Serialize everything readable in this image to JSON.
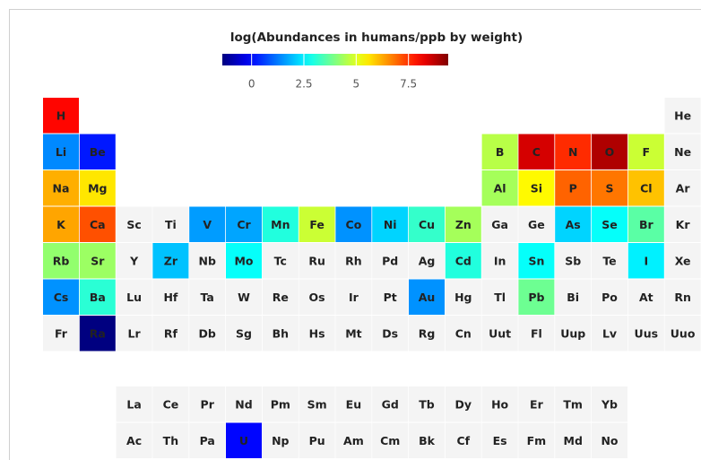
{
  "chart_data": {
    "type": "heatmap",
    "title": "log(Abundances in humans/ppb by weight)",
    "clim": [
      -1.4,
      9.4
    ],
    "cticks": [
      0,
      2.5,
      5,
      {
        "value": 7.5,
        "label": "7.5"
      }
    ],
    "colormap": "jet",
    "empty_color": "#f4f4f4",
    "rows": [
      [
        "H",
        null,
        null,
        null,
        null,
        null,
        null,
        null,
        null,
        null,
        null,
        null,
        null,
        null,
        null,
        null,
        null,
        "He"
      ],
      [
        "Li",
        "Be",
        null,
        null,
        null,
        null,
        null,
        null,
        null,
        null,
        null,
        null,
        "B",
        "C",
        "N",
        "O",
        "F",
        "Ne"
      ],
      [
        "Na",
        "Mg",
        null,
        null,
        null,
        null,
        null,
        null,
        null,
        null,
        null,
        null,
        "Al",
        "Si",
        "P",
        "S",
        "Cl",
        "Ar"
      ],
      [
        "K",
        "Ca",
        "Sc",
        "Ti",
        "V",
        "Cr",
        "Mn",
        "Fe",
        "Co",
        "Ni",
        "Cu",
        "Zn",
        "Ga",
        "Ge",
        "As",
        "Se",
        "Br",
        "Kr"
      ],
      [
        "Rb",
        "Sr",
        "Y",
        "Zr",
        "Nb",
        "Mo",
        "Tc",
        "Ru",
        "Rh",
        "Pd",
        "Ag",
        "Cd",
        "In",
        "Sn",
        "Sb",
        "Te",
        "I",
        "Xe"
      ],
      [
        "Cs",
        "Ba",
        "Lu",
        "Hf",
        "Ta",
        "W",
        "Re",
        "Os",
        "Ir",
        "Pt",
        "Au",
        "Hg",
        "Tl",
        "Pb",
        "Bi",
        "Po",
        "At",
        "Rn"
      ],
      [
        "Fr",
        "Ra",
        "Lr",
        "Rf",
        "Db",
        "Sg",
        "Bh",
        "Hs",
        "Mt",
        "Ds",
        "Rg",
        "Cn",
        "Uut",
        "Fl",
        "Uup",
        "Lv",
        "Uus",
        "Uuo"
      ],
      [
        null,
        null,
        "La",
        "Ce",
        "Pr",
        "Nd",
        "Pm",
        "Sm",
        "Eu",
        "Gd",
        "Tb",
        "Dy",
        "Ho",
        "Er",
        "Tm",
        "Yb",
        null,
        null
      ],
      [
        null,
        null,
        "Ac",
        "Th",
        "Pa",
        "U",
        "Np",
        "Pu",
        "Am",
        "Cm",
        "Bk",
        "Cf",
        "Es",
        "Fm",
        "Md",
        "No",
        null,
        null
      ]
    ],
    "values": [
      [
        8.0,
        null,
        null,
        null,
        null,
        null,
        null,
        null,
        null,
        null,
        null,
        null,
        null,
        null,
        null,
        null,
        null,
        null
      ],
      [
        1.4,
        0.2,
        null,
        null,
        null,
        null,
        null,
        null,
        null,
        null,
        null,
        null,
        4.6,
        8.5,
        7.6,
        8.9,
        4.8,
        null
      ],
      [
        6.2,
        5.6,
        null,
        null,
        null,
        null,
        null,
        null,
        null,
        null,
        null,
        null,
        4.4,
        5.4,
        7.0,
        6.8,
        6.0,
        null
      ],
      [
        6.3,
        7.2,
        null,
        null,
        1.6,
        1.7,
        3.0,
        4.8,
        1.5,
        2.2,
        3.2,
        4.4,
        null,
        null,
        2.2,
        2.7,
        3.6,
        null
      ],
      [
        4.2,
        4.3,
        null,
        2.0,
        null,
        2.7,
        null,
        null,
        null,
        null,
        null,
        3.0,
        null,
        2.7,
        null,
        null,
        2.5,
        null
      ],
      [
        1.5,
        3.1,
        null,
        null,
        null,
        null,
        null,
        null,
        null,
        null,
        1.5,
        null,
        null,
        3.8,
        null,
        null,
        null,
        null
      ],
      [
        null,
        -1.4,
        null,
        null,
        null,
        null,
        null,
        null,
        null,
        null,
        null,
        null,
        null,
        null,
        null,
        null,
        null,
        null
      ],
      [
        null,
        null,
        null,
        null,
        null,
        null,
        null,
        null,
        null,
        null,
        null,
        null,
        null,
        null,
        null,
        null,
        null,
        null
      ],
      [
        null,
        null,
        null,
        null,
        null,
        0.0,
        null,
        null,
        null,
        null,
        null,
        null,
        null,
        null,
        null,
        null,
        null,
        null
      ]
    ]
  }
}
